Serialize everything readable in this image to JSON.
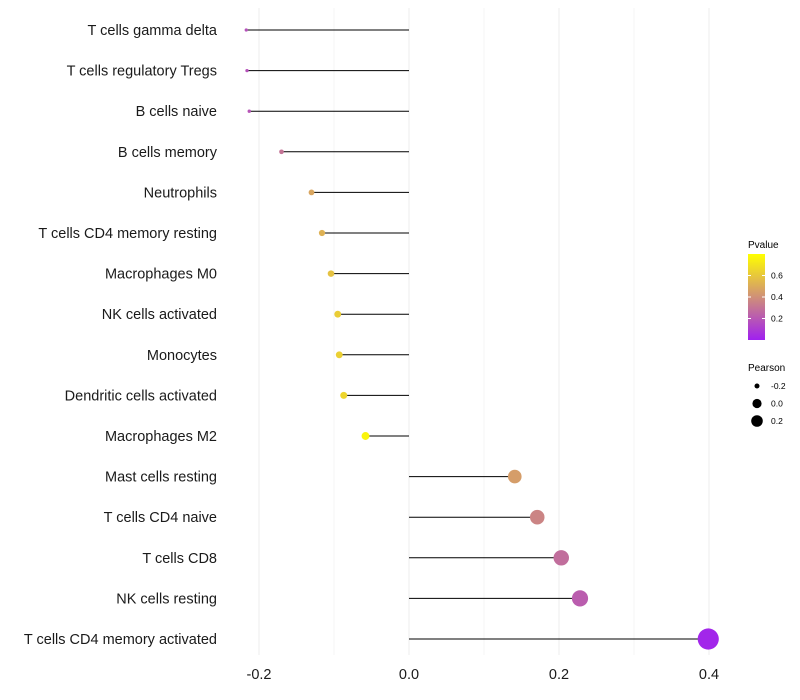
{
  "chart_data": {
    "type": "lollipop",
    "title": "",
    "xlabel": "",
    "ylabel": "",
    "xlim": [
      -0.3,
      0.4
    ],
    "xticks": [
      -0.2,
      0.0,
      0.2,
      0.4
    ],
    "xtick_labels": [
      "-0.2",
      "0.0",
      "0.2",
      "0.4"
    ],
    "grid": true,
    "color_scale": {
      "low": "#a020f0",
      "high": "#ffff00",
      "domain": [
        0.0,
        0.8
      ]
    },
    "legend_position": "right",
    "color_legend": {
      "title": "Pvalue",
      "ticks": [
        "0.6",
        "0.4",
        "0.2"
      ],
      "tick_values": [
        0.6,
        0.4,
        0.2
      ]
    },
    "size_legend": {
      "title": "Pearson",
      "labels": [
        "-0.2",
        "0.0",
        "0.2"
      ],
      "values": [
        -0.2,
        0.0,
        0.2
      ]
    },
    "series": [
      {
        "name": "T cells gamma delta",
        "pearson": -0.217,
        "pvalue": 0.18
      },
      {
        "name": "T cells regulatory  Tregs",
        "pearson": -0.216,
        "pvalue": 0.18
      },
      {
        "name": "B cells naive",
        "pearson": -0.213,
        "pvalue": 0.19
      },
      {
        "name": "B cells memory",
        "pearson": -0.17,
        "pvalue": 0.3
      },
      {
        "name": "Neutrophils",
        "pearson": -0.13,
        "pvalue": 0.48
      },
      {
        "name": "T cells CD4 memory resting",
        "pearson": -0.116,
        "pvalue": 0.52
      },
      {
        "name": "Macrophages M0",
        "pearson": -0.104,
        "pvalue": 0.58
      },
      {
        "name": "NK cells activated",
        "pearson": -0.095,
        "pvalue": 0.62
      },
      {
        "name": "Monocytes",
        "pearson": -0.093,
        "pvalue": 0.63
      },
      {
        "name": "Dendritic cells activated",
        "pearson": -0.087,
        "pvalue": 0.65
      },
      {
        "name": "Macrophages M2",
        "pearson": -0.058,
        "pvalue": 0.76
      },
      {
        "name": "Mast cells resting",
        "pearson": 0.141,
        "pvalue": 0.45
      },
      {
        "name": "T cells CD4 naive",
        "pearson": 0.171,
        "pvalue": 0.36
      },
      {
        "name": "T cells CD8",
        "pearson": 0.203,
        "pvalue": 0.28
      },
      {
        "name": "NK cells resting",
        "pearson": 0.228,
        "pvalue": 0.22
      },
      {
        "name": "T cells CD4 memory activated",
        "pearson": 0.399,
        "pvalue": 0.02
      }
    ]
  }
}
